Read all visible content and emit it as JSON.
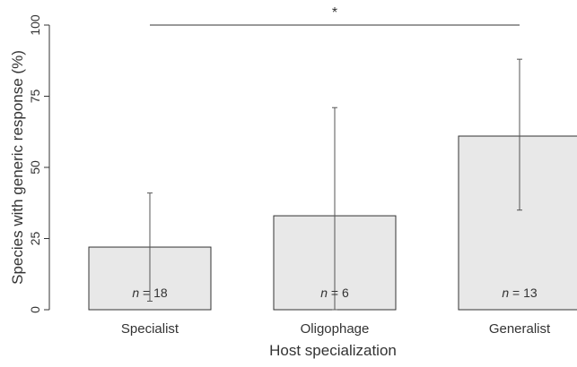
{
  "chart_data": {
    "type": "bar",
    "categories": [
      "Specialist",
      "Oligophage",
      "Generalist"
    ],
    "values": [
      22,
      33,
      61
    ],
    "error_bars": [
      {
        "low": 3,
        "high": 41
      },
      {
        "low": 0,
        "high": 71
      },
      {
        "low": 35,
        "high": 88
      }
    ],
    "sample_sizes": [
      "n = 18",
      "n = 6",
      "n = 13"
    ],
    "n_symbol": "n",
    "n_values": [
      "= 18",
      "= 6",
      "= 13"
    ],
    "xlabel": "Host specialization",
    "ylabel": "Species with generic response (%)",
    "ylim": [
      0,
      100
    ],
    "yticks": [
      0,
      25,
      50,
      75,
      100
    ],
    "significance": {
      "label": "*",
      "from": "Specialist",
      "to": "Generalist"
    },
    "grid": false,
    "bar_fill": "#e8e8e8",
    "bar_stroke": "#333333"
  }
}
